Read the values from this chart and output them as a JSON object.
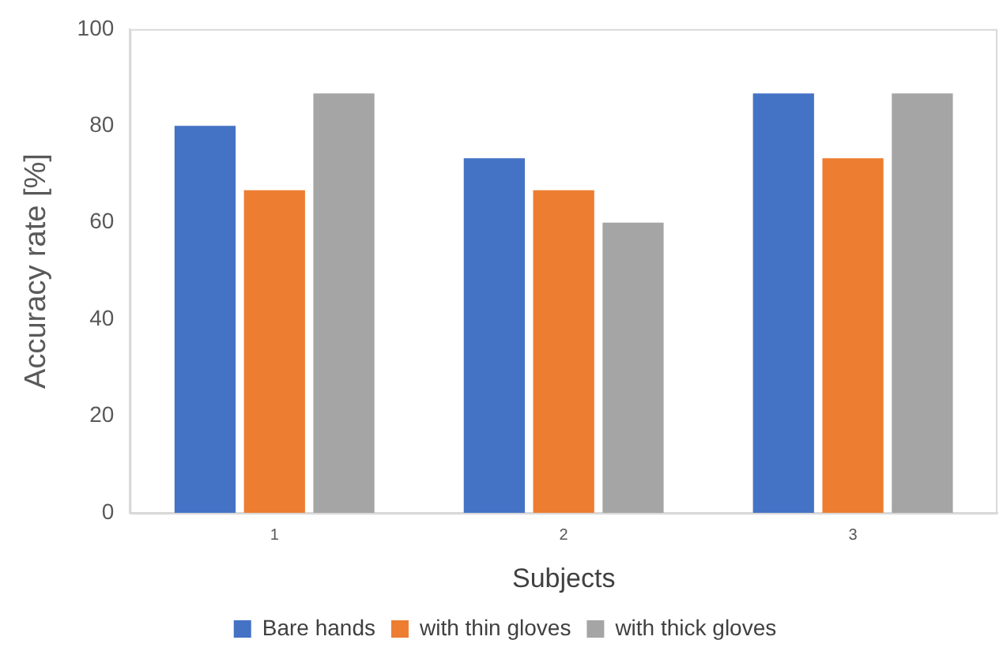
{
  "chart_data": {
    "type": "bar",
    "xlabel": "Subjects",
    "ylabel": "Accuracy rate [%]",
    "categories": [
      "1",
      "2",
      "3"
    ],
    "series": [
      {
        "name": "Bare hands",
        "color": "#4472c4",
        "values": [
          80,
          73.3,
          86.7
        ]
      },
      {
        "name": "with thin gloves",
        "color": "#ed7d31",
        "values": [
          66.7,
          66.7,
          73.3
        ]
      },
      {
        "name": "with thick gloves",
        "color": "#a5a5a5",
        "values": [
          86.7,
          60,
          86.7
        ]
      }
    ],
    "ylim": [
      0,
      100
    ],
    "yticks": [
      0,
      20,
      40,
      60,
      80,
      100
    ],
    "grid": false,
    "legend": "bottom"
  }
}
